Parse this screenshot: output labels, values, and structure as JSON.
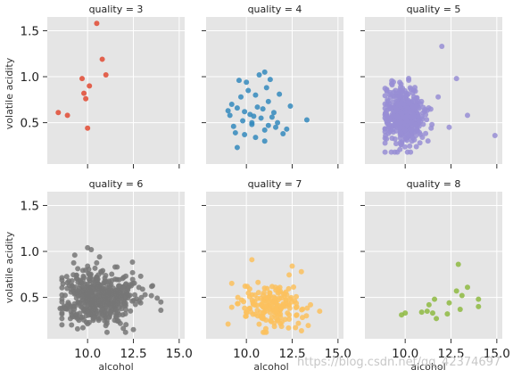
{
  "chart_data": {
    "type": "scatter",
    "x_label": "alcohol",
    "y_label": "volatile acidity",
    "xlim": [
      7.8,
      15.3
    ],
    "ylim": [
      0.05,
      1.65
    ],
    "x_ticks": [
      10.0,
      12.5,
      15.0
    ],
    "x_tick_labels": [
      "10.0",
      "12.5",
      "15.0"
    ],
    "y_ticks": [
      0.5,
      1.0,
      1.5
    ],
    "y_tick_labels": [
      "0.5",
      "1.0",
      "1.5"
    ],
    "grid": true,
    "watermark": "https://blog.csdn.net/qq_42374697",
    "panels": [
      {
        "title": "quality = 3",
        "color": "#E24A33",
        "points": [
          [
            8.4,
            0.61
          ],
          [
            8.9,
            0.58
          ],
          [
            9.7,
            0.98
          ],
          [
            9.8,
            0.82
          ],
          [
            9.9,
            0.76
          ],
          [
            10.0,
            0.44
          ],
          [
            10.1,
            0.9
          ],
          [
            10.5,
            1.58
          ],
          [
            10.8,
            1.19
          ],
          [
            11.0,
            1.02
          ]
        ]
      },
      {
        "title": "quality = 4",
        "color": "#348ABD",
        "points": [
          [
            9.0,
            0.63
          ],
          [
            9.1,
            0.58
          ],
          [
            9.2,
            0.7
          ],
          [
            9.3,
            0.46
          ],
          [
            9.4,
            0.39
          ],
          [
            9.5,
            0.23
          ],
          [
            9.6,
            0.96
          ],
          [
            9.7,
            0.78
          ],
          [
            9.8,
            0.52
          ],
          [
            9.9,
            0.62
          ],
          [
            9.9,
            0.37
          ],
          [
            10.0,
            0.94
          ],
          [
            10.1,
            0.85
          ],
          [
            10.2,
            0.59
          ],
          [
            10.3,
            0.48
          ],
          [
            10.4,
            0.57
          ],
          [
            10.5,
            0.34
          ],
          [
            10.5,
            0.8
          ],
          [
            10.6,
            0.67
          ],
          [
            10.7,
            1.02
          ],
          [
            10.8,
            0.55
          ],
          [
            10.9,
            0.65
          ],
          [
            11.0,
            0.3
          ],
          [
            11.0,
            0.42
          ],
          [
            11.1,
            0.88
          ],
          [
            11.2,
            0.73
          ],
          [
            11.2,
            0.47
          ],
          [
            11.3,
            0.97
          ],
          [
            11.4,
            0.56
          ],
          [
            11.5,
            0.61
          ],
          [
            11.6,
            0.45
          ],
          [
            11.7,
            0.5
          ],
          [
            11.8,
            0.81
          ],
          [
            12.0,
            0.38
          ],
          [
            12.2,
            0.43
          ],
          [
            12.4,
            0.68
          ],
          [
            13.3,
            0.53
          ],
          [
            10.3,
            0.5
          ],
          [
            9.5,
            0.66
          ],
          [
            11.0,
            1.05
          ]
        ]
      },
      {
        "title": "quality = 5",
        "color": "#988ED5",
        "points": "cluster",
        "outliers": [
          [
            12.0,
            1.33
          ],
          [
            14.9,
            0.36
          ],
          [
            13.4,
            0.58
          ],
          [
            12.8,
            0.98
          ],
          [
            9.0,
            0.85
          ],
          [
            11.8,
            0.78
          ],
          [
            12.4,
            0.45
          ]
        ]
      },
      {
        "title": "quality = 6",
        "color": "#777777",
        "points": "cluster",
        "outliers": [
          [
            10.0,
            1.04
          ],
          [
            10.2,
            1.02
          ],
          [
            9.3,
            0.96
          ],
          [
            12.9,
            0.73
          ],
          [
            13.5,
            0.62
          ],
          [
            14.0,
            0.45
          ],
          [
            14.0,
            0.36
          ],
          [
            8.5,
            0.38
          ],
          [
            12.5,
            0.15
          ]
        ]
      },
      {
        "title": "quality = 7",
        "color": "#FBC15E",
        "points": "cluster",
        "outliers": [
          [
            10.3,
            0.91
          ],
          [
            12.5,
            0.84
          ],
          [
            13.0,
            0.78
          ],
          [
            13.5,
            0.42
          ],
          [
            9.0,
            0.21
          ],
          [
            14.0,
            0.35
          ],
          [
            11.0,
            0.12
          ]
        ]
      },
      {
        "title": "quality = 8",
        "color": "#8EBA42",
        "points": [
          [
            9.8,
            0.31
          ],
          [
            10.0,
            0.33
          ],
          [
            10.9,
            0.34
          ],
          [
            11.2,
            0.35
          ],
          [
            11.3,
            0.42
          ],
          [
            11.5,
            0.33
          ],
          [
            11.6,
            0.48
          ],
          [
            11.7,
            0.27
          ],
          [
            12.3,
            0.32
          ],
          [
            12.4,
            0.44
          ],
          [
            12.8,
            0.57
          ],
          [
            12.9,
            0.86
          ],
          [
            13.0,
            0.37
          ],
          [
            13.1,
            0.52
          ],
          [
            13.4,
            0.61
          ],
          [
            14.0,
            0.48
          ],
          [
            14.0,
            0.4
          ]
        ]
      }
    ]
  }
}
